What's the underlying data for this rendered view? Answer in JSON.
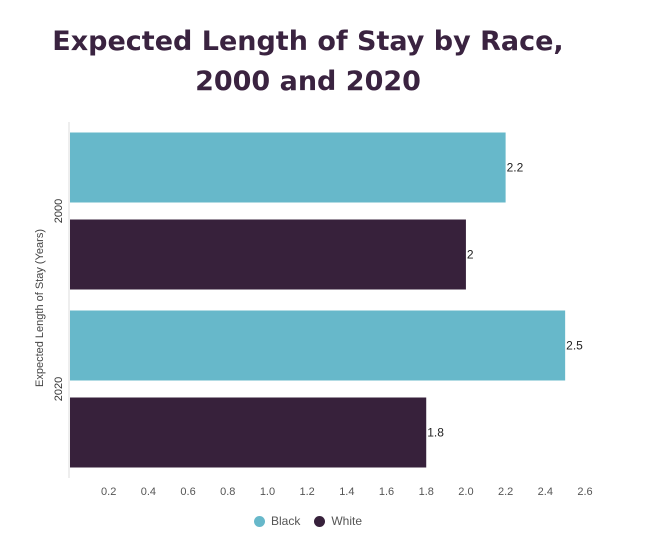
{
  "chart_data": {
    "type": "bar",
    "orientation": "horizontal",
    "title_lines": [
      "Expected Length of Stay by Race,",
      "2000 and 2020"
    ],
    "ylabel": "Expected Length of Stay (Years)",
    "categories": [
      "2000",
      "2020"
    ],
    "series": [
      {
        "name": "Black",
        "color": "#67b8ca",
        "values": [
          2.2,
          2.5
        ],
        "labels": [
          "2.2",
          "2.5"
        ]
      },
      {
        "name": "White",
        "color": "#37213b",
        "values": [
          2.0,
          1.8
        ],
        "labels": [
          "2",
          "1.8"
        ]
      }
    ],
    "xlim": [
      0,
      2.6
    ],
    "xticks": [
      0.2,
      0.4,
      0.6,
      0.8,
      1.0,
      1.2,
      1.4,
      1.6,
      1.8,
      2.0,
      2.2,
      2.4,
      2.6
    ],
    "xtick_labels": [
      "0.2",
      "0.4",
      "0.6",
      "0.8",
      "1.0",
      "1.2",
      "1.4",
      "1.6",
      "1.8",
      "2.0",
      "2.2",
      "2.4",
      "2.6"
    ],
    "legend_position": "bottom-center",
    "grid": false
  }
}
